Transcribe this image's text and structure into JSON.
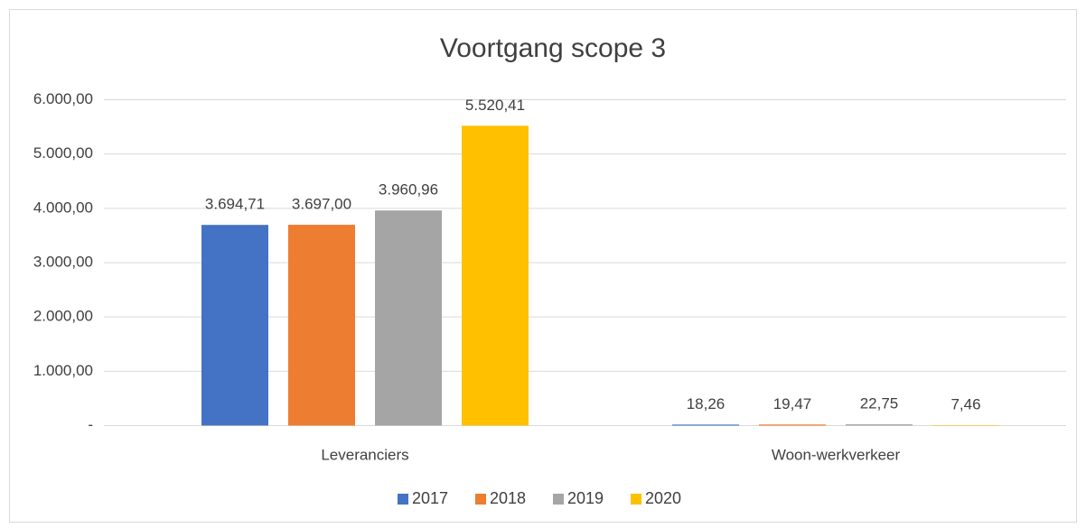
{
  "chart_data": {
    "type": "bar",
    "title": "Voortgang scope 3",
    "categories": [
      "Leveranciers",
      "Woon-werkverkeer"
    ],
    "series": [
      {
        "name": "2017",
        "color": "#4472c4",
        "values": [
          3694.71,
          18.26
        ],
        "value_labels": [
          "3.694,71",
          "18,26"
        ]
      },
      {
        "name": "2018",
        "color": "#ed7d31",
        "values": [
          3697.0,
          19.47
        ],
        "value_labels": [
          "3.697,00",
          "19,47"
        ]
      },
      {
        "name": "2019",
        "color": "#a5a5a5",
        "values": [
          3960.96,
          22.75
        ],
        "value_labels": [
          "3.960,96",
          "22,75"
        ]
      },
      {
        "name": "2020",
        "color": "#ffc000",
        "values": [
          5520.41,
          7.46
        ],
        "value_labels": [
          "5.520,41",
          "7,46"
        ]
      }
    ],
    "ylim": [
      0,
      6000
    ],
    "yticks": [
      {
        "value": 0,
        "label": "-"
      },
      {
        "value": 1000,
        "label": "1.000,00"
      },
      {
        "value": 2000,
        "label": "2.000,00"
      },
      {
        "value": 3000,
        "label": "3.000,00"
      },
      {
        "value": 4000,
        "label": "4.000,00"
      },
      {
        "value": 5000,
        "label": "5.000,00"
      },
      {
        "value": 6000,
        "label": "6.000,00"
      }
    ],
    "grid": true,
    "legend": "bottom"
  }
}
